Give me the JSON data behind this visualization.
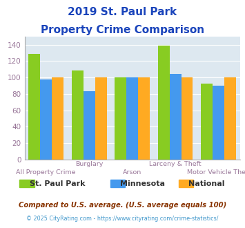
{
  "title_line1": "2019 St. Paul Park",
  "title_line2": "Property Crime Comparison",
  "title_color": "#1a44bb",
  "categories_top": [
    "",
    "Burglary",
    "",
    "Larceny & Theft",
    ""
  ],
  "categories_bot": [
    "All Property Crime",
    "",
    "Arson",
    "",
    "Motor Vehicle Theft"
  ],
  "stpaul_values": [
    129,
    109,
    100,
    139,
    93
  ],
  "minnesota_values": [
    98,
    83,
    100,
    104,
    90
  ],
  "national_values": [
    100,
    100,
    100,
    100,
    100
  ],
  "stpaul_color": "#88cc22",
  "minnesota_color": "#4499ee",
  "national_color": "#ffaa22",
  "ylim": [
    0,
    150
  ],
  "yticks": [
    0,
    20,
    40,
    60,
    80,
    100,
    120,
    140
  ],
  "bg_color": "#dde8f0",
  "legend_labels": [
    "St. Paul Park",
    "Minnesota",
    "National"
  ],
  "footnote1": "Compared to U.S. average. (U.S. average equals 100)",
  "footnote2": "© 2025 CityRating.com - https://www.cityrating.com/crime-statistics/",
  "footnote1_color": "#883300",
  "footnote2_color": "#4499cc",
  "xlabel_color": "#997799",
  "tick_color": "#997799"
}
